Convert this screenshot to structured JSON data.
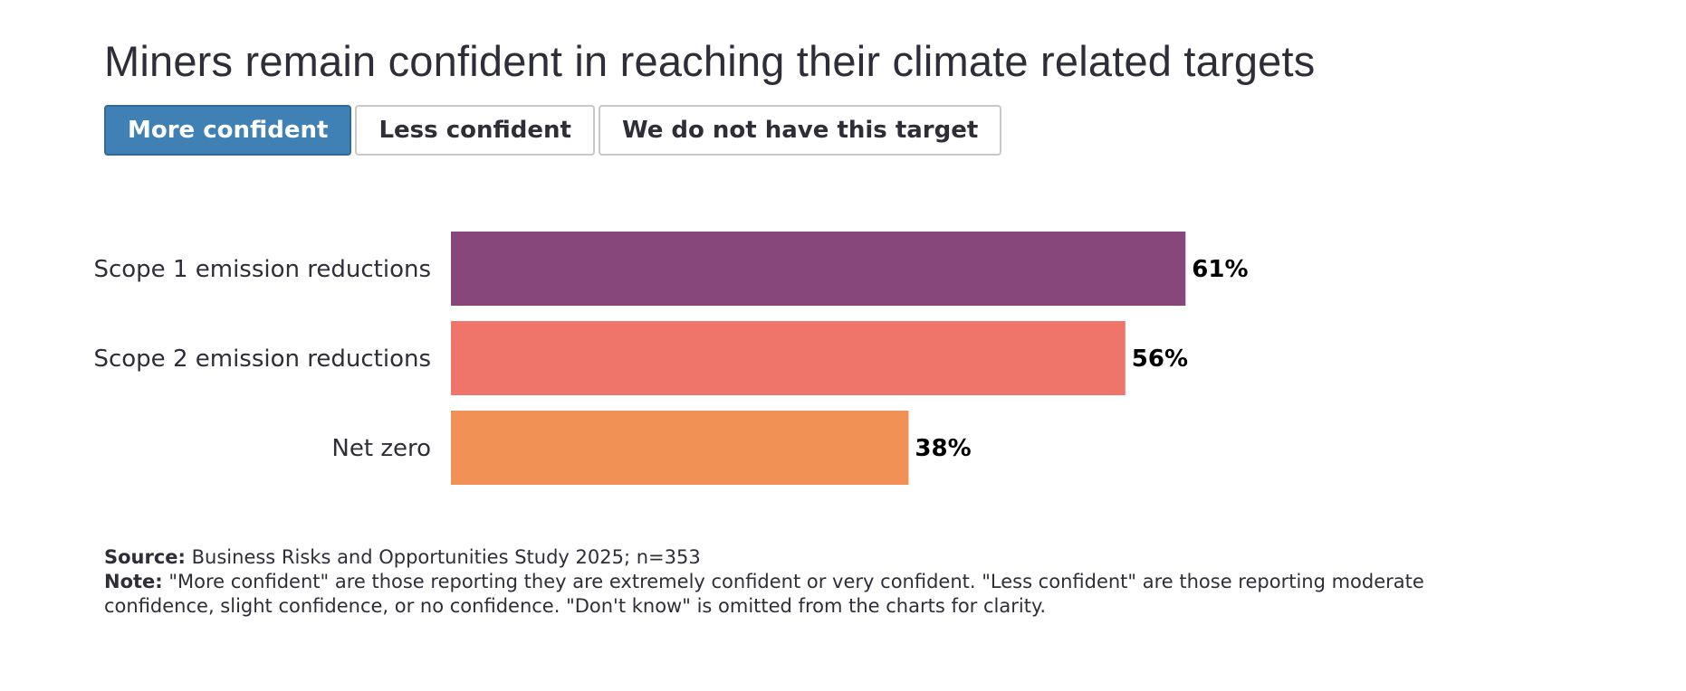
{
  "title": "Miners remain confident in reaching their climate related targets",
  "tabs": [
    {
      "label": "More confident",
      "active": true
    },
    {
      "label": "Less confident",
      "active": false
    },
    {
      "label": "We do not have this target",
      "active": false
    }
  ],
  "colors": {
    "active_tab": "#3f81b4",
    "scope1": "#87477a",
    "scope2": "#ef7469",
    "net_zero": "#f29155"
  },
  "chart_data": {
    "type": "bar",
    "orientation": "horizontal",
    "categories": [
      "Scope 1 emission reductions",
      "Scope 2 emission reductions",
      "Net zero"
    ],
    "values": [
      61,
      56,
      38
    ],
    "value_labels": [
      "61%",
      "56%",
      "38%"
    ],
    "colors": [
      "#87477a",
      "#ef7469",
      "#f29155"
    ],
    "unit": "%",
    "xlim": [
      0,
      100
    ],
    "grid": false,
    "legend": "none"
  },
  "footer": {
    "source_label": "Source:",
    "source_text": "Business Risks and Opportunities Study 2025; n=353",
    "note_label": "Note:",
    "note_text": "\"More confident\" are those reporting they are extremely confident or very confident. \"Less confident\" are those reporting moderate confidence, slight confidence, or no confidence. \"Don't know\" is omitted from the charts for clarity."
  }
}
